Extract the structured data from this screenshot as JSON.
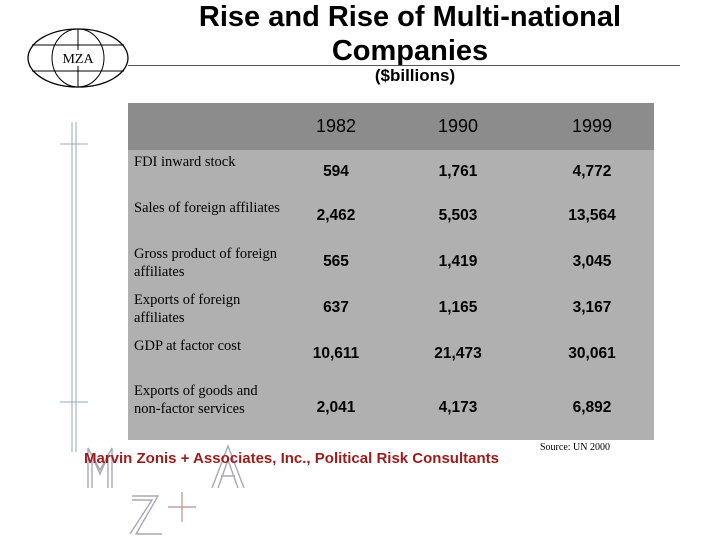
{
  "header": {
    "logo_text": "MZA",
    "title": "Rise and Rise of Multi-national Companies",
    "subtitle": "($billions)"
  },
  "table": {
    "columns": [
      "1982",
      "1990",
      "1999"
    ],
    "rows": [
      {
        "label": "FDI inward stock",
        "values": [
          "594",
          "1,761",
          "4,772"
        ]
      },
      {
        "label": "Sales of foreign affiliates",
        "values": [
          "2,462",
          "5,503",
          "13,564"
        ]
      },
      {
        "label": "Gross product of foreign affiliates",
        "values": [
          "565",
          "1,419",
          "3,045"
        ]
      },
      {
        "label": "Exports of foreign affiliates",
        "values": [
          "637",
          "1,165",
          "3,167"
        ]
      },
      {
        "label": "GDP at factor cost",
        "values": [
          "10,611",
          "21,473",
          "30,061"
        ]
      },
      {
        "label": "Exports of goods and non-factor services",
        "values": [
          "2,041",
          "4,173",
          "6,892"
        ]
      }
    ]
  },
  "footer": {
    "company": "Marvin Zonis + Associates, Inc., Political Risk Consultants",
    "source": "Source: UN 2000"
  },
  "colors": {
    "panel": "#b0b0b0",
    "header_band": "#8c8c8c",
    "company_text": "#9b1c1c"
  }
}
